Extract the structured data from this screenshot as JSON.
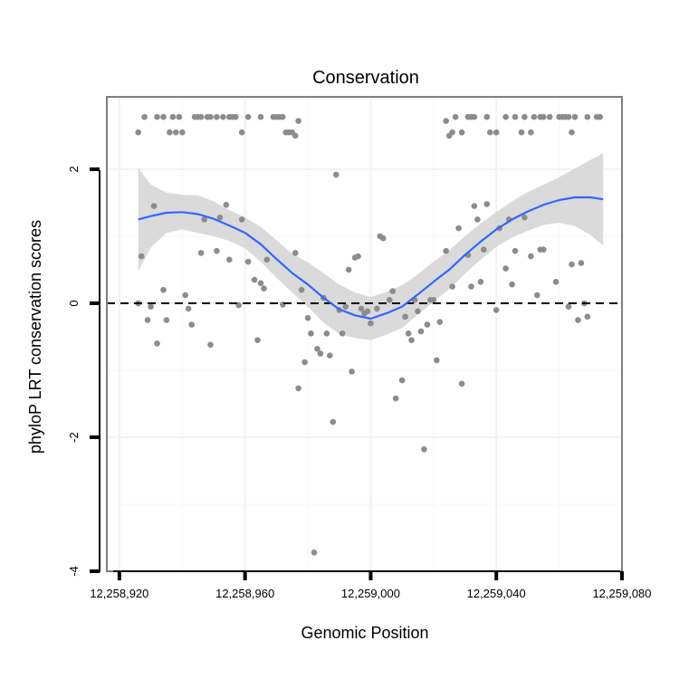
{
  "chart_data": {
    "type": "scatter",
    "title": "Conservation",
    "xlabel": "Genomic Position",
    "ylabel": "phyloP LRT conservation scores",
    "xlim": [
      12258916,
      12259080
    ],
    "ylim": [
      -4,
      3.08
    ],
    "x_ticks": [
      {
        "value": 12258920,
        "label": "12,258,920"
      },
      {
        "value": 12258960,
        "label": "12,258,960"
      },
      {
        "value": 12259000,
        "label": "12,259,000"
      },
      {
        "value": 12259040,
        "label": "12,259,040"
      },
      {
        "value": 12259080,
        "label": "12,259,080"
      }
    ],
    "y_ticks": [
      {
        "value": 2,
        "label": "2"
      },
      {
        "value": 0,
        "label": "0"
      },
      {
        "value": -2,
        "label": "-2"
      },
      {
        "value": -4,
        "label": "-4"
      }
    ],
    "reference_line": {
      "y": 0,
      "style": "dashed"
    },
    "colors": {
      "points": "#8c8c8c",
      "smooth": "#3366ff",
      "ribbon": "#d3d3d3",
      "reference": "#000000",
      "panel_border": "#7f7f7f"
    },
    "series": [
      {
        "name": "scores",
        "kind": "points",
        "points": [
          [
            12258926,
            2.55
          ],
          [
            12258928,
            2.78
          ],
          [
            12258932,
            2.78
          ],
          [
            12258934,
            2.78
          ],
          [
            12258936,
            2.55
          ],
          [
            12258937,
            2.78
          ],
          [
            12258938,
            2.55
          ],
          [
            12258939,
            2.78
          ],
          [
            12258940,
            2.55
          ],
          [
            12258944,
            2.78
          ],
          [
            12258945,
            2.78
          ],
          [
            12258946,
            2.78
          ],
          [
            12258948,
            2.78
          ],
          [
            12258949,
            2.78
          ],
          [
            12258951,
            2.78
          ],
          [
            12258953,
            2.78
          ],
          [
            12258955,
            2.78
          ],
          [
            12258956,
            2.78
          ],
          [
            12258957,
            2.78
          ],
          [
            12258959,
            2.55
          ],
          [
            12258961,
            2.78
          ],
          [
            12258965,
            2.78
          ],
          [
            12258969,
            2.78
          ],
          [
            12258970,
            2.78
          ],
          [
            12258971,
            2.78
          ],
          [
            12258972,
            2.78
          ],
          [
            12258973,
            2.55
          ],
          [
            12258974,
            2.55
          ],
          [
            12258975,
            2.55
          ],
          [
            12258976,
            2.5
          ],
          [
            12258977,
            2.72
          ],
          [
            12259024,
            2.72
          ],
          [
            12259025,
            2.5
          ],
          [
            12259026,
            2.55
          ],
          [
            12259027,
            2.78
          ],
          [
            12259029,
            2.55
          ],
          [
            12259031,
            2.78
          ],
          [
            12259032,
            2.78
          ],
          [
            12259033,
            2.78
          ],
          [
            12259037,
            2.78
          ],
          [
            12259038,
            2.55
          ],
          [
            12259040,
            2.55
          ],
          [
            12259043,
            2.78
          ],
          [
            12259046,
            2.78
          ],
          [
            12259048,
            2.55
          ],
          [
            12259049,
            2.78
          ],
          [
            12259051,
            2.55
          ],
          [
            12259052,
            2.78
          ],
          [
            12259054,
            2.78
          ],
          [
            12259055,
            2.78
          ],
          [
            12259057,
            2.78
          ],
          [
            12259060,
            2.78
          ],
          [
            12259061,
            2.78
          ],
          [
            12259062,
            2.78
          ],
          [
            12259063,
            2.78
          ],
          [
            12259064,
            2.55
          ],
          [
            12259065,
            2.78
          ],
          [
            12259069,
            2.78
          ],
          [
            12259072,
            2.78
          ],
          [
            12259073,
            2.78
          ],
          [
            12258926,
            0.0
          ],
          [
            12258927,
            0.7
          ],
          [
            12258929,
            -0.25
          ],
          [
            12258930,
            -0.05
          ],
          [
            12258931,
            1.45
          ],
          [
            12258932,
            -0.6
          ],
          [
            12258934,
            0.2
          ],
          [
            12258935,
            -0.25
          ],
          [
            12258941,
            0.12
          ],
          [
            12258942,
            -0.08
          ],
          [
            12258943,
            -0.32
          ],
          [
            12258946,
            0.75
          ],
          [
            12258947,
            1.25
          ],
          [
            12258949,
            -0.62
          ],
          [
            12258951,
            0.78
          ],
          [
            12258952,
            1.28
          ],
          [
            12258954,
            1.47
          ],
          [
            12258955,
            0.65
          ],
          [
            12258958,
            -0.03
          ],
          [
            12258959,
            1.25
          ],
          [
            12258961,
            0.62
          ],
          [
            12258963,
            0.35
          ],
          [
            12258964,
            -0.55
          ],
          [
            12258965,
            0.3
          ],
          [
            12258966,
            0.22
          ],
          [
            12258967,
            0.65
          ],
          [
            12258972,
            -0.02
          ],
          [
            12258976,
            0.75
          ],
          [
            12258977,
            -1.27
          ],
          [
            12258978,
            0.2
          ],
          [
            12258979,
            -0.88
          ],
          [
            12258980,
            -0.22
          ],
          [
            12258981,
            -0.45
          ],
          [
            12258982,
            -3.72
          ],
          [
            12258983,
            -0.68
          ],
          [
            12258984,
            -0.75
          ],
          [
            12258985,
            0.08
          ],
          [
            12258986,
            -0.45
          ],
          [
            12258987,
            -0.78
          ],
          [
            12258988,
            -1.77
          ],
          [
            12258989,
            1.92
          ],
          [
            12258990,
            -0.1
          ],
          [
            12258991,
            -0.45
          ],
          [
            12258992,
            -0.05
          ],
          [
            12258993,
            0.5
          ],
          [
            12258994,
            -1.02
          ],
          [
            12258995,
            0.68
          ],
          [
            12258996,
            0.7
          ],
          [
            12258997,
            -0.08
          ],
          [
            12258998,
            -0.15
          ],
          [
            12258999,
            -0.12
          ],
          [
            12259000,
            -0.3
          ],
          [
            12259002,
            -0.08
          ],
          [
            12259003,
            1.0
          ],
          [
            12259004,
            0.97
          ],
          [
            12259006,
            0.05
          ],
          [
            12259007,
            0.18
          ],
          [
            12259008,
            -1.42
          ],
          [
            12259010,
            -1.15
          ],
          [
            12259011,
            -0.2
          ],
          [
            12259012,
            -0.45
          ],
          [
            12259013,
            -0.55
          ],
          [
            12259014,
            0.05
          ],
          [
            12259015,
            -0.12
          ],
          [
            12259016,
            -0.42
          ],
          [
            12259017,
            -2.18
          ],
          [
            12259018,
            -0.32
          ],
          [
            12259019,
            0.05
          ],
          [
            12259020,
            0.05
          ],
          [
            12259021,
            -0.85
          ],
          [
            12259022,
            -0.28
          ],
          [
            12259024,
            0.78
          ],
          [
            12259026,
            0.25
          ],
          [
            12259028,
            1.12
          ],
          [
            12259029,
            -1.2
          ],
          [
            12259031,
            0.72
          ],
          [
            12259032,
            0.25
          ],
          [
            12259033,
            1.45
          ],
          [
            12259034,
            1.25
          ],
          [
            12259035,
            0.32
          ],
          [
            12259036,
            0.8
          ],
          [
            12259037,
            1.48
          ],
          [
            12259040,
            -0.1
          ],
          [
            12259041,
            1.12
          ],
          [
            12259043,
            0.52
          ],
          [
            12259044,
            1.25
          ],
          [
            12259045,
            0.28
          ],
          [
            12259046,
            0.78
          ],
          [
            12259049,
            1.28
          ],
          [
            12259051,
            0.7
          ],
          [
            12259053,
            0.12
          ],
          [
            12259054,
            0.8
          ],
          [
            12259055,
            0.8
          ],
          [
            12259059,
            0.32
          ],
          [
            12259063,
            -0.05
          ],
          [
            12259064,
            0.58
          ],
          [
            12259066,
            -0.25
          ],
          [
            12259067,
            0.6
          ],
          [
            12259068,
            0.0
          ],
          [
            12259069,
            -0.2
          ]
        ]
      },
      {
        "name": "loess fit",
        "kind": "smooth",
        "x": [
          12258926,
          12258930,
          12258935,
          12258940,
          12258945,
          12258950,
          12258955,
          12258960,
          12258965,
          12258970,
          12258975,
          12258980,
          12258985,
          12258990,
          12258995,
          12259000,
          12259005,
          12259010,
          12259015,
          12259020,
          12259025,
          12259030,
          12259035,
          12259040,
          12259045,
          12259050,
          12259055,
          12259060,
          12259065,
          12259070,
          12259074
        ],
        "y": [
          1.25,
          1.3,
          1.35,
          1.36,
          1.33,
          1.26,
          1.16,
          1.05,
          0.88,
          0.66,
          0.45,
          0.28,
          0.08,
          -0.09,
          -0.18,
          -0.23,
          -0.15,
          -0.05,
          0.13,
          0.32,
          0.5,
          0.72,
          0.92,
          1.1,
          1.25,
          1.37,
          1.47,
          1.54,
          1.58,
          1.58,
          1.55
        ],
        "lower": [
          0.48,
          0.83,
          1.05,
          1.1,
          1.05,
          1.0,
          0.93,
          0.82,
          0.62,
          0.38,
          0.16,
          -0.05,
          -0.29,
          -0.46,
          -0.52,
          -0.55,
          -0.47,
          -0.37,
          -0.17,
          0.02,
          0.21,
          0.44,
          0.65,
          0.84,
          0.98,
          1.08,
          1.17,
          1.2,
          1.15,
          1.02,
          0.86
        ],
        "upper": [
          2.02,
          1.77,
          1.65,
          1.62,
          1.61,
          1.52,
          1.39,
          1.28,
          1.14,
          0.94,
          0.74,
          0.61,
          0.45,
          0.28,
          0.16,
          0.09,
          0.17,
          0.27,
          0.43,
          0.62,
          0.79,
          1.0,
          1.19,
          1.36,
          1.52,
          1.66,
          1.77,
          1.88,
          2.01,
          2.14,
          2.24
        ]
      }
    ]
  }
}
